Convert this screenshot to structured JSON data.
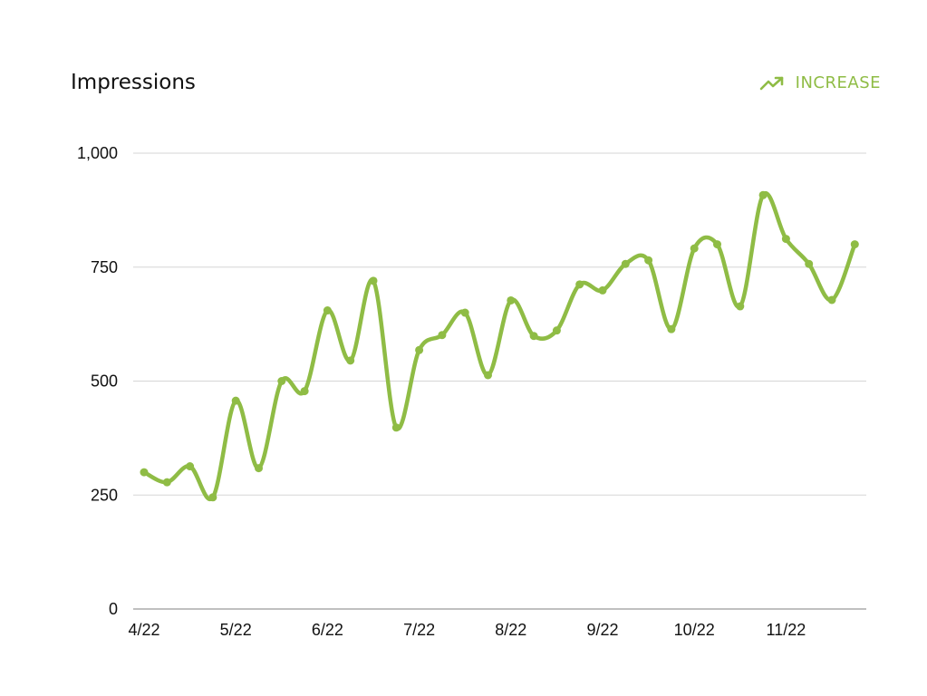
{
  "header": {
    "title": "Impressions",
    "badge_label": "INCREASE",
    "badge_icon": "trending-up-icon",
    "badge_color": "#8fbc45"
  },
  "chart_data": {
    "type": "line",
    "title": "Impressions",
    "xlabel": "",
    "ylabel": "",
    "ylim": [
      0,
      1000
    ],
    "yticks": [
      0,
      250,
      500,
      750,
      1000
    ],
    "ytick_labels": [
      "0",
      "250",
      "500",
      "750",
      "1,000"
    ],
    "xtick_labels": [
      "4/22",
      "5/22",
      "6/22",
      "7/22",
      "8/22",
      "9/22",
      "10/22",
      "11/22"
    ],
    "grid": true,
    "line_color": "#8fbc45",
    "series": [
      {
        "values": [
          300,
          278,
          313,
          245,
          457,
          309,
          500,
          478,
          655,
          545,
          720,
          398,
          568,
          601,
          650,
          513,
          677,
          599,
          611,
          712,
          699,
          757,
          765,
          614,
          791,
          800,
          664,
          908,
          812,
          757,
          678,
          800
        ]
      }
    ]
  }
}
